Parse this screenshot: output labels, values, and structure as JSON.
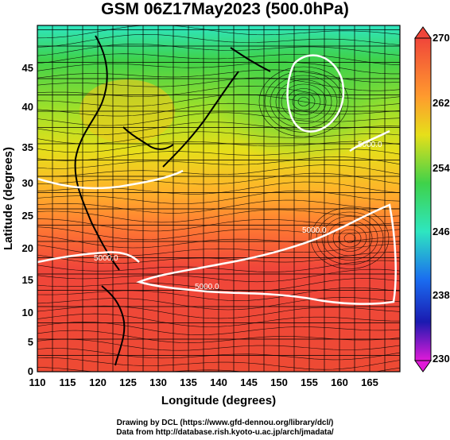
{
  "title": "GSM 06Z17May2023 (500.0hPa)",
  "map": {
    "x_axis": {
      "label": "Longitude (degrees)",
      "ticks": [
        "110",
        "115",
        "120",
        "125",
        "130",
        "135",
        "140",
        "145",
        "150",
        "155",
        "160",
        "165"
      ],
      "range": [
        110,
        170
      ]
    },
    "y_axis": {
      "label": "Latitude (degrees)",
      "ticks": [
        "0",
        "5",
        "10",
        "15",
        "20",
        "25",
        "30",
        "35",
        "40",
        "45"
      ],
      "range": [
        0,
        50
      ]
    },
    "grid": true,
    "contour_labels": [
      "5000.0",
      "5000.0",
      "5000.0",
      "5000.0"
    ],
    "colorbar": {
      "ticks": [
        "270",
        "262",
        "254",
        "246",
        "238",
        "230"
      ],
      "range": [
        230,
        270
      ]
    },
    "colors": {
      "warm": "#f0463a",
      "orange": "#ff9a2e",
      "yellow": "#e6df1a",
      "green": "#3fd24a",
      "cyan": "#2ee6c0",
      "contour": "#ffffff",
      "coast": "#000000"
    }
  },
  "credits": {
    "line1": "Drawing by DCL (https://www.gfd-dennou.org/library/dcl/)",
    "line2": "Data from http://database.rish.kyoto-u.ac.jp/arch/jmadata/"
  }
}
